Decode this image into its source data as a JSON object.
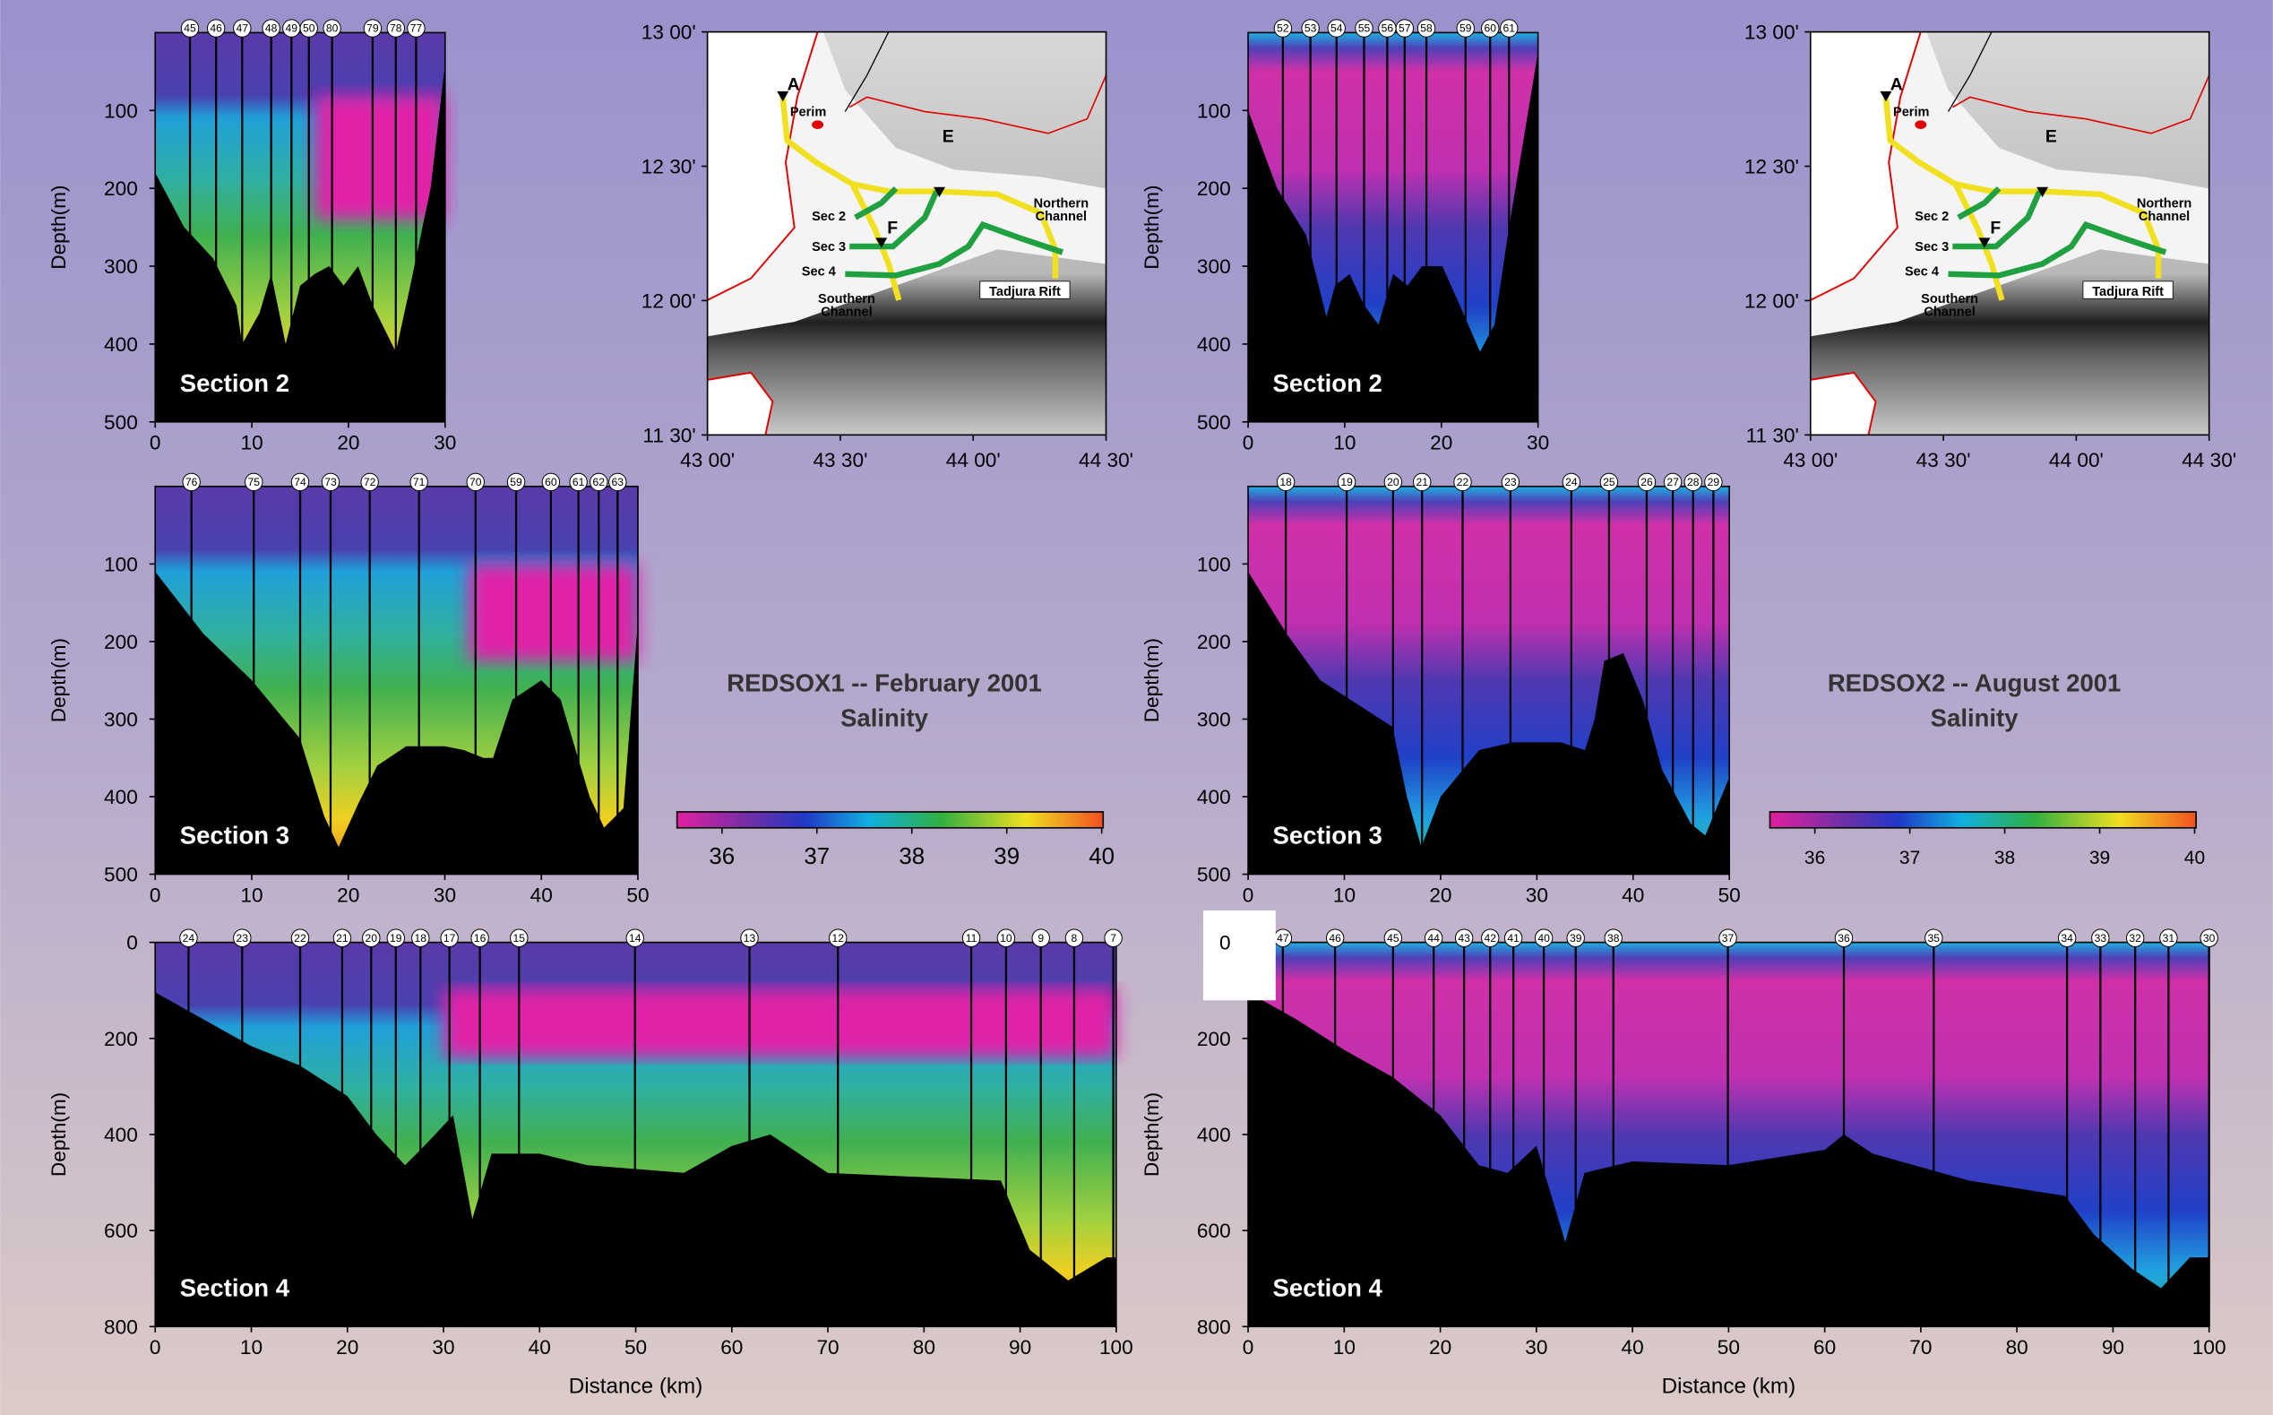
{
  "axis_labels": {
    "depth": "Depth(m)",
    "distance": "Distance (km)"
  },
  "campaigns": [
    {
      "title": "REDSOX1 -- February 2001",
      "subtitle": "Salinity",
      "colorbar_ticks": [
        36,
        37,
        38,
        39,
        40
      ],
      "map": {
        "lat_labels": [
          "13 00'",
          "12 30'",
          "12 00'",
          "11 30'"
        ],
        "lon_labels": [
          "43 00'",
          "43 30'",
          "44 00'",
          "44 30'"
        ],
        "points": [
          "A",
          "E",
          "F"
        ],
        "places": [
          "Perim",
          "Tadjura Rift"
        ],
        "sections": [
          "Sec 2",
          "Sec 3",
          "Sec 4"
        ],
        "channels": [
          [
            "Southern",
            "Channel"
          ],
          [
            "Northern",
            "Channel"
          ]
        ]
      },
      "sections": [
        {
          "label": "Section 2",
          "stations": [
            45,
            46,
            47,
            48,
            49,
            50,
            80,
            79,
            78,
            77
          ],
          "xticks": [
            0,
            10,
            20,
            30
          ],
          "yticks": [
            100,
            200,
            300,
            400,
            500
          ]
        },
        {
          "label": "Section 3",
          "stations": [
            76,
            75,
            74,
            73,
            72,
            71,
            70,
            59,
            60,
            61,
            62,
            63
          ],
          "xticks": [
            0,
            10,
            20,
            30,
            40,
            50
          ],
          "yticks": [
            100,
            200,
            300,
            400,
            500
          ]
        },
        {
          "label": "Section 4",
          "stations": [
            24,
            23,
            22,
            21,
            20,
            19,
            18,
            17,
            16,
            15,
            14,
            13,
            12,
            11,
            10,
            9,
            8,
            7
          ],
          "xticks": [
            0,
            10,
            20,
            30,
            40,
            50,
            60,
            70,
            80,
            90,
            100
          ],
          "yticks": [
            0,
            200,
            400,
            600,
            800
          ]
        }
      ]
    },
    {
      "title": "REDSOX2 -- August 2001",
      "subtitle": "Salinity",
      "colorbar_ticks": [
        36,
        37,
        38,
        39,
        40
      ],
      "map": {
        "lat_labels": [
          "13 00'",
          "12 30'",
          "12 00'",
          "11 30'"
        ],
        "lon_labels": [
          "43 00'",
          "43 30'",
          "44 00'",
          "44 30'"
        ],
        "points": [
          "A",
          "E",
          "F"
        ],
        "places": [
          "Perim",
          "Tadjura Rift"
        ],
        "sections": [
          "Sec 2",
          "Sec 3",
          "Sec 4"
        ],
        "channels": [
          [
            "Southern",
            "Channel"
          ],
          [
            "Northern",
            "Channel"
          ]
        ]
      },
      "sections": [
        {
          "label": "Section 2",
          "stations": [
            52,
            53,
            54,
            55,
            56,
            57,
            58,
            59,
            60,
            61
          ],
          "xticks": [
            0,
            10,
            20,
            30
          ],
          "yticks": [
            100,
            200,
            300,
            400,
            500
          ]
        },
        {
          "label": "Section 3",
          "stations": [
            18,
            19,
            20,
            21,
            22,
            23,
            24,
            25,
            26,
            27,
            28,
            29
          ],
          "xticks": [
            0,
            10,
            20,
            30,
            40,
            50
          ],
          "yticks": [
            100,
            200,
            300,
            400,
            500
          ]
        },
        {
          "label": "Section 4",
          "stations": [
            47,
            46,
            45,
            44,
            43,
            42,
            41,
            40,
            39,
            38,
            37,
            36,
            35,
            34,
            33,
            32,
            31,
            30
          ],
          "xticks": [
            0,
            10,
            20,
            30,
            40,
            50,
            60,
            70,
            80,
            90,
            100
          ],
          "yticks": [
            0,
            200,
            400,
            600,
            800
          ]
        }
      ]
    }
  ]
}
